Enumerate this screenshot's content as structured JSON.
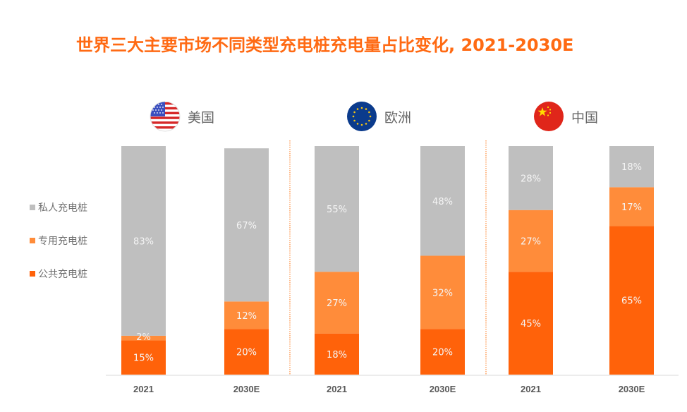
{
  "title": "世界三大主要市场不同类型充电桩充电量占比变化, 2021-2030E",
  "colors": {
    "title": "#ff6a13",
    "private": "#bfbfbf",
    "dedicated": "#ff8c3a",
    "public": "#ff620a",
    "separator": "#ff8c3a",
    "axis": "#e6e6e6",
    "label_text": "#f5f5f5",
    "tick_text": "#595959"
  },
  "legend": [
    {
      "key": "private",
      "label": "私人充电桩",
      "color": "#bfbfbf"
    },
    {
      "key": "dedicated",
      "label": "专用充电桩",
      "color": "#ff8c3a"
    },
    {
      "key": "public",
      "label": "公共充电桩",
      "color": "#ff620a"
    }
  ],
  "regions": [
    {
      "name": "美国",
      "flag": "us-flag"
    },
    {
      "name": "欧洲",
      "flag": "eu-flag"
    },
    {
      "name": "中国",
      "flag": "cn-flag"
    }
  ],
  "chart_data": {
    "type": "bar",
    "stacked": true,
    "title": "世界三大主要市场不同类型充电桩充电量占比变化, 2021-2030E",
    "xlabel": "",
    "ylabel": "",
    "ylim": [
      0,
      100
    ],
    "unit": "%",
    "grid": false,
    "legend_position": "left",
    "groups": [
      "美国",
      "美国",
      "欧洲",
      "欧洲",
      "中国",
      "中国"
    ],
    "categories": [
      "2021",
      "2030E",
      "2021",
      "2030E",
      "2021",
      "2030E"
    ],
    "series": [
      {
        "name": "公共充电桩",
        "key": "public",
        "values": [
          15,
          20,
          18,
          20,
          45,
          65
        ]
      },
      {
        "name": "专用充电桩",
        "key": "dedicated",
        "values": [
          2,
          12,
          27,
          32,
          27,
          17
        ]
      },
      {
        "name": "私人充电桩",
        "key": "private",
        "values": [
          83,
          67,
          55,
          48,
          28,
          18
        ]
      }
    ]
  }
}
